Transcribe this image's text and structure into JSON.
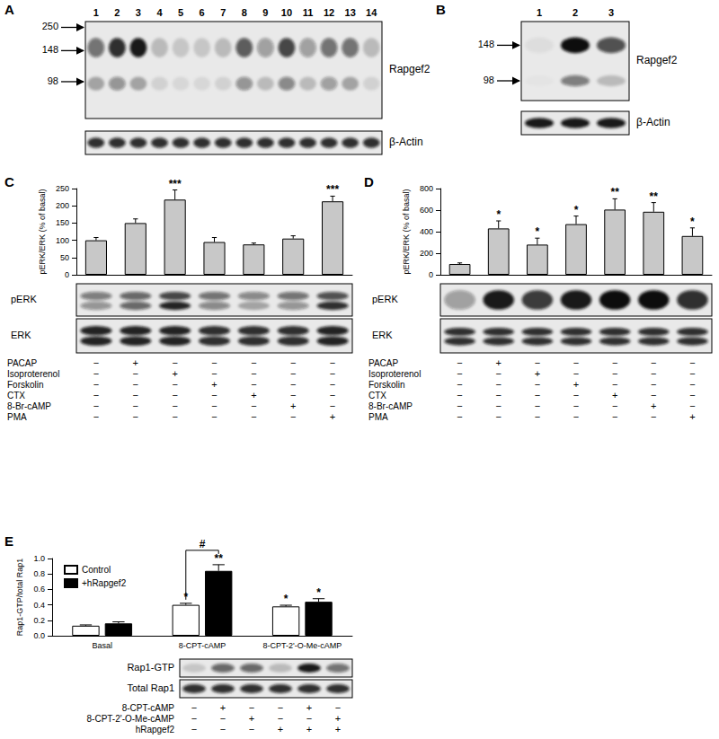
{
  "panels": [
    {
      "title": "A",
      "lanes": [
        1,
        2,
        3,
        4,
        5,
        6,
        7,
        8,
        9,
        10,
        11,
        12,
        13,
        14
      ],
      "markers": [
        250,
        148,
        98
      ],
      "blots": [
        "Rapgef2",
        "β-Actin"
      ]
    },
    {
      "title": "B",
      "lanes": [
        1,
        2,
        3
      ],
      "markers": [
        148,
        98
      ],
      "blots": [
        "Rapgef2",
        "β-Actin"
      ]
    }
  ],
  "chart_data": [
    {
      "type": "bar",
      "title": "C",
      "ylabel": "pERK/ERK (% of basal)",
      "categories": [
        null,
        null,
        null,
        null,
        null,
        null,
        null
      ],
      "values": [
        100,
        150,
        218,
        95,
        88,
        105,
        213
      ],
      "errors": [
        8,
        12,
        28,
        13,
        4,
        8,
        15
      ],
      "annotations": [
        null,
        null,
        "***",
        null,
        null,
        null,
        "***"
      ],
      "color": "#c8c8c8",
      "ylim": [
        0,
        250
      ],
      "yticks": [
        0,
        50,
        100,
        150,
        200,
        250
      ],
      "grid": false,
      "blots": [
        "pERK",
        "ERK"
      ],
      "treatments": [
        {
          "name": "PACAP",
          "values": [
            "−",
            "+",
            "−",
            "−",
            "−",
            "−",
            "−"
          ]
        },
        {
          "name": "Isoproterenol",
          "values": [
            "−",
            "−",
            "+",
            "−",
            "−",
            "−",
            "−"
          ]
        },
        {
          "name": "Forskolin",
          "values": [
            "−",
            "−",
            "−",
            "+",
            "−",
            "−",
            "−"
          ]
        },
        {
          "name": "CTX",
          "values": [
            "−",
            "−",
            "−",
            "−",
            "+",
            "−",
            "−"
          ]
        },
        {
          "name": "8-Br-cAMP",
          "values": [
            "−",
            "−",
            "−",
            "−",
            "−",
            "+",
            "−"
          ]
        },
        {
          "name": "PMA",
          "values": [
            "−",
            "−",
            "−",
            "−",
            "−",
            "−",
            "+"
          ]
        }
      ]
    },
    {
      "type": "bar",
      "title": "D",
      "ylabel": "pERK/ERK (% of basal)",
      "categories": [
        null,
        null,
        null,
        null,
        null,
        null,
        null
      ],
      "values": [
        100,
        430,
        280,
        470,
        605,
        585,
        360
      ],
      "errors": [
        10,
        70,
        60,
        75,
        100,
        85,
        75
      ],
      "annotations": [
        null,
        "*",
        "*",
        "*",
        "**",
        "**",
        "*"
      ],
      "color": "#c8c8c8",
      "ylim": [
        0,
        800
      ],
      "yticks": [
        0,
        200,
        400,
        600,
        800
      ],
      "grid": false,
      "blots": [
        "pERK",
        "ERK"
      ],
      "treatments": [
        {
          "name": "PACAP",
          "values": [
            "−",
            "+",
            "−",
            "−",
            "−",
            "−",
            "−"
          ]
        },
        {
          "name": "Isoproterenol",
          "values": [
            "−",
            "−",
            "+",
            "−",
            "−",
            "−",
            "−"
          ]
        },
        {
          "name": "Forskolin",
          "values": [
            "−",
            "−",
            "−",
            "+",
            "−",
            "−",
            "−"
          ]
        },
        {
          "name": "CTX",
          "values": [
            "−",
            "−",
            "−",
            "−",
            "+",
            "−",
            "−"
          ]
        },
        {
          "name": "8-Br-cAMP",
          "values": [
            "−",
            "−",
            "−",
            "−",
            "−",
            "+",
            "−"
          ]
        },
        {
          "name": "PMA",
          "values": [
            "−",
            "−",
            "−",
            "−",
            "−",
            "−",
            "+"
          ]
        }
      ]
    },
    {
      "type": "bar",
      "title": "E",
      "ylabel": "Rap1-GTP/total Rap1",
      "categories": [
        "Basal",
        "8-CPT-cAMP",
        "8-CPT-2'-O-Me-cAMP"
      ],
      "series": [
        {
          "name": "Control",
          "color": "#ffffff",
          "values": [
            0.13,
            0.4,
            0.38
          ],
          "errors": [
            0.01,
            0.02,
            0.015
          ],
          "annotations": [
            null,
            "*",
            "*"
          ]
        },
        {
          "name": "+hRapgef2",
          "color": "#000000",
          "values": [
            0.16,
            0.84,
            0.44
          ],
          "errors": [
            0.02,
            0.08,
            0.04
          ],
          "annotations": [
            null,
            "**",
            "*"
          ]
        }
      ],
      "comparisons": [
        {
          "category": "8-CPT-cAMP",
          "label": "#"
        }
      ],
      "ylim": [
        0,
        1.0
      ],
      "yticks": [
        {
          "value": 0,
          "label": "0.0"
        },
        {
          "value": 0.2,
          "label": "0.2"
        },
        {
          "value": 0.4,
          "label": "0.4"
        },
        {
          "value": 0.6,
          "label": "0.6"
        },
        {
          "value": 0.8,
          "label": "0.8"
        },
        {
          "value": 1.0,
          "label": "1.0"
        }
      ],
      "legend": "upper left",
      "grid": false,
      "blots": [
        "Rap1-GTP",
        "Total Rap1"
      ],
      "treatments": [
        {
          "name": "8-CPT-cAMP",
          "values": [
            "−",
            "+",
            "−",
            "−",
            "+",
            "−"
          ]
        },
        {
          "name": "8-CPT-2'-O-Me-cAMP",
          "values": [
            "−",
            "−",
            "+",
            "−",
            "−",
            "+"
          ]
        },
        {
          "name": "hRapgef2",
          "values": [
            "−",
            "−",
            "−",
            "+",
            "+",
            "+"
          ]
        }
      ]
    }
  ]
}
